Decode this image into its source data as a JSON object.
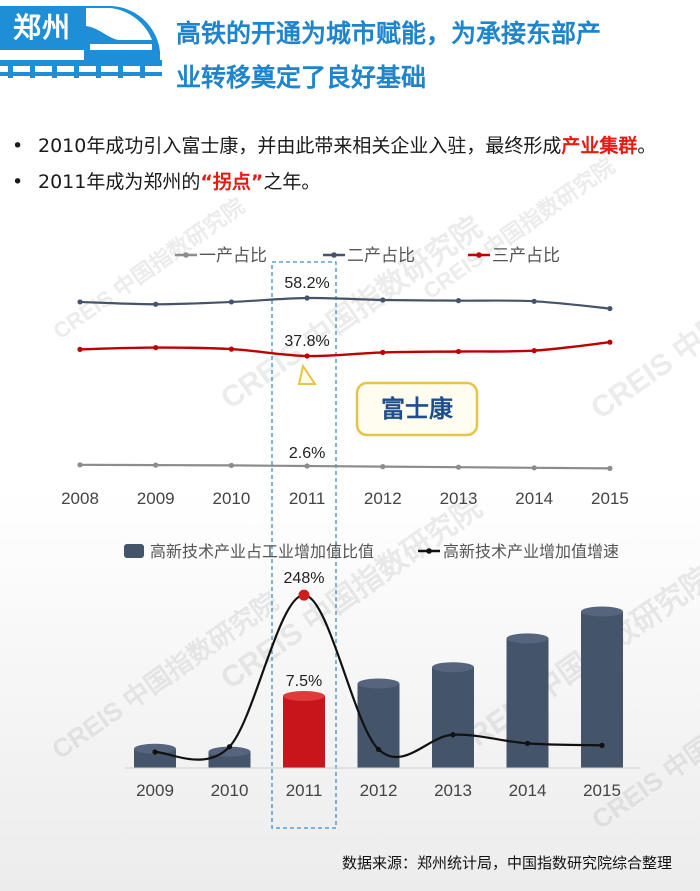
{
  "header": {
    "city": "郑州",
    "headline_line1": "高铁的开通为城市赋能，为承接东部产",
    "headline_line2": "业转移奠定了良好基础"
  },
  "bullets": [
    {
      "before": "2010年成功引入富士康，并由此带来相关企业入驻，最终形成",
      "highlight": "产业集群",
      "after": "。"
    },
    {
      "before": "2011年成为郑州的",
      "highlight": "“拐点”",
      "after": "之年。"
    }
  ],
  "logo_text": "富士康",
  "watermark": "CREIS 中国指数研究院",
  "colors": {
    "primary_series": "#8c8c8c",
    "secondary_series": "#44546a",
    "tertiary_series": "#c00000",
    "highlight_bar": "#c8141b",
    "bar": "#44546a",
    "accent": "#1e84cc"
  },
  "chart_data": [
    {
      "type": "line",
      "x": [
        "2008",
        "2009",
        "2010",
        "2011",
        "2012",
        "2013",
        "2014",
        "2015"
      ],
      "series": [
        {
          "name": "一产占比",
          "values": [
            3.0,
            2.9,
            2.8,
            2.6,
            2.4,
            2.2,
            2.0,
            1.8
          ]
        },
        {
          "name": "二产占比",
          "values": [
            57.0,
            56.3,
            57.0,
            58.2,
            57.6,
            57.4,
            57.2,
            55.0
          ]
        },
        {
          "name": "三产占比",
          "values": [
            40.0,
            40.6,
            40.1,
            37.8,
            39.0,
            39.3,
            39.6,
            42.4
          ]
        }
      ],
      "annotations": [
        {
          "series": "二产占比",
          "x": "2011",
          "label": "58.2%"
        },
        {
          "series": "三产占比",
          "x": "2011",
          "label": "37.8%"
        },
        {
          "series": "一产占比",
          "x": "2011",
          "label": "2.6%"
        }
      ],
      "legend": "top",
      "grid": false
    },
    {
      "type": "bar",
      "categories": [
        "2009",
        "2010",
        "2011",
        "2012",
        "2013",
        "2014",
        "2015"
      ],
      "series": [
        {
          "name": "高新技术产业占工业增加值比值",
          "kind": "bar",
          "values": [
            2.0,
            1.7,
            7.5,
            8.8,
            10.5,
            13.5,
            16.3
          ]
        },
        {
          "name": "高新技术产业增加值增速",
          "kind": "line",
          "values": [
            12,
            20,
            248,
            16,
            38,
            25,
            22
          ]
        }
      ],
      "annotations": [
        {
          "series": "高新技术产业增加值增速",
          "x": "2011",
          "label": "248%"
        },
        {
          "series": "高新技术产业占工业增加值比值",
          "x": "2011",
          "label": "7.5%"
        }
      ],
      "highlight_category": "2011",
      "legend": "top",
      "grid": false
    }
  ],
  "source": "数据来源：郑州统计局，中国指数研究院综合整理"
}
